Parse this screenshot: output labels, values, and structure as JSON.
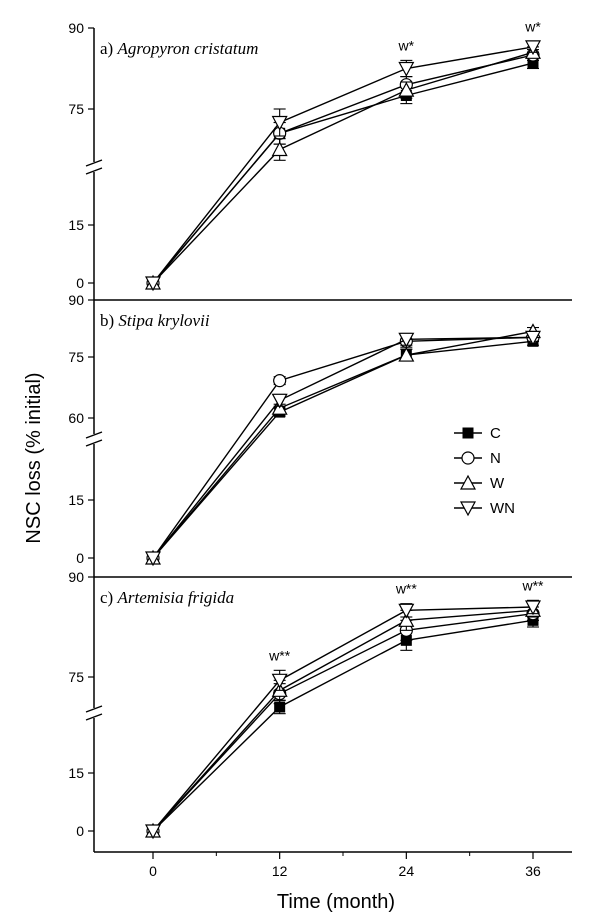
{
  "chart_data": {
    "type": "line",
    "xlabel": "Time (month)",
    "ylabel": "NSC loss (% initial)",
    "x": [
      0,
      12,
      24,
      36
    ],
    "x_ticks": [
      "0",
      "12",
      "24",
      "36"
    ],
    "legend": {
      "placement": "right-center",
      "entries": [
        {
          "name": "C",
          "marker": "square-filled"
        },
        {
          "name": "N",
          "marker": "circle-open"
        },
        {
          "name": "W",
          "marker": "triangle-up-open"
        },
        {
          "name": "WN",
          "marker": "triangle-down-open"
        }
      ]
    },
    "panels": [
      {
        "id": "a",
        "label_prefix": "a)",
        "species": "Agropyron cristatum",
        "ylim_lower": [
          0,
          22
        ],
        "ylim_upper": [
          65,
          90
        ],
        "y_ticks_lower": [
          "0",
          "15"
        ],
        "y_ticks_upper": [
          "75",
          "90"
        ],
        "series": [
          {
            "name": "C",
            "values": [
              0,
              70.5,
              77.5,
              83.5
            ],
            "err": [
              0,
              2,
              1.5,
              1
            ]
          },
          {
            "name": "N",
            "values": [
              0,
              70.5,
              79.5,
              85
            ],
            "err": [
              0,
              2,
              1.5,
              1
            ]
          },
          {
            "name": "W",
            "values": [
              0,
              67.5,
              78.5,
              85.5
            ],
            "err": [
              0,
              2,
              1.5,
              1
            ]
          },
          {
            "name": "WN",
            "values": [
              0,
              72.5,
              82.5,
              86.5
            ],
            "err": [
              0,
              2.5,
              1.5,
              1
            ]
          }
        ],
        "annotations": [
          {
            "x": 24,
            "text": "w*"
          },
          {
            "x": 36,
            "text": "w*"
          }
        ]
      },
      {
        "id": "b",
        "label_prefix": "b)",
        "species": "Stipa krylovii",
        "ylim_lower": [
          0,
          22
        ],
        "ylim_upper": [
          55,
          90
        ],
        "y_ticks_lower": [
          "0",
          "15"
        ],
        "y_ticks_upper": [
          "60",
          "75",
          "90"
        ],
        "series": [
          {
            "name": "C",
            "values": [
              0,
              61.5,
              76,
              79.5
            ],
            "err": [
              0,
              1,
              1.5,
              1
            ]
          },
          {
            "name": "N",
            "values": [
              0,
              69.5,
              79.5,
              80.5
            ],
            "err": [
              0,
              1,
              1.5,
              1
            ]
          },
          {
            "name": "W",
            "values": [
              0,
              62.5,
              76,
              82
            ],
            "err": [
              0,
              1,
              1.5,
              1
            ]
          },
          {
            "name": "WN",
            "values": [
              0,
              64.5,
              80,
              80.5
            ],
            "err": [
              0,
              1.5,
              1.5,
              1
            ]
          }
        ],
        "annotations": []
      },
      {
        "id": "c",
        "label_prefix": "c)",
        "species": "Artemisia frigida",
        "ylim_lower": [
          0,
          22
        ],
        "ylim_upper": [
          65,
          90
        ],
        "y_ticks_lower": [
          "0",
          "15"
        ],
        "y_ticks_upper": [
          "75",
          "90"
        ],
        "series": [
          {
            "name": "C",
            "values": [
              0,
              70.5,
              80.5,
              83.5
            ],
            "err": [
              0,
              1,
              1.5,
              1
            ]
          },
          {
            "name": "N",
            "values": [
              0,
              72.5,
              82,
              84.5
            ],
            "err": [
              0,
              1.5,
              1.5,
              1
            ]
          },
          {
            "name": "W",
            "values": [
              0,
              73,
              83.5,
              85
            ],
            "err": [
              0,
              1.5,
              1.5,
              1
            ]
          },
          {
            "name": "WN",
            "values": [
              0,
              74.5,
              85,
              85.5
            ],
            "err": [
              0,
              1.5,
              1,
              1
            ]
          }
        ],
        "annotations": [
          {
            "x": 12,
            "text": "w**"
          },
          {
            "x": 24,
            "text": "w**"
          },
          {
            "x": 36,
            "text": "w**"
          }
        ]
      }
    ]
  }
}
